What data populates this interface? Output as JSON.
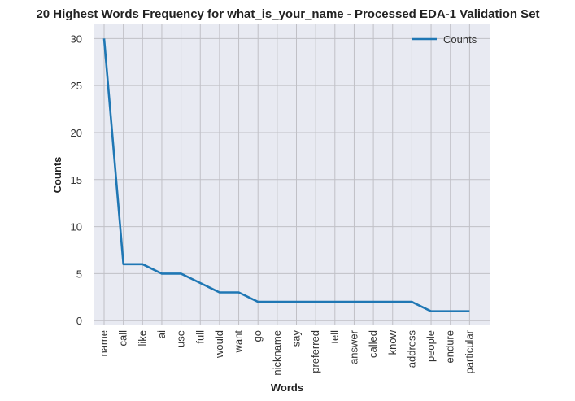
{
  "chart_data": {
    "type": "line",
    "title": "20 Highest Words Frequency for what_is_your_name - Processed EDA-1 Validation Set",
    "xlabel": "Words",
    "ylabel": "Counts",
    "categories": [
      "name",
      "call",
      "like",
      "ai",
      "use",
      "full",
      "would",
      "want",
      "go",
      "nickname",
      "say",
      "preferred",
      "tell",
      "answer",
      "called",
      "know",
      "address",
      "people",
      "endure",
      "particular"
    ],
    "series": [
      {
        "name": "Counts",
        "values": [
          30,
          6,
          6,
          5,
          5,
          4,
          3,
          3,
          2,
          2,
          2,
          2,
          2,
          2,
          2,
          2,
          2,
          1,
          1,
          1
        ]
      }
    ],
    "ylim": [
      -0.5,
      31.5
    ],
    "yticks": [
      0,
      5,
      10,
      15,
      20,
      25,
      30
    ],
    "grid": true,
    "legend_position": "top-right",
    "colors": {
      "line": "#1f77b4",
      "plot_bg": "#e8eaf2",
      "grid": "#c0c0c6"
    }
  }
}
